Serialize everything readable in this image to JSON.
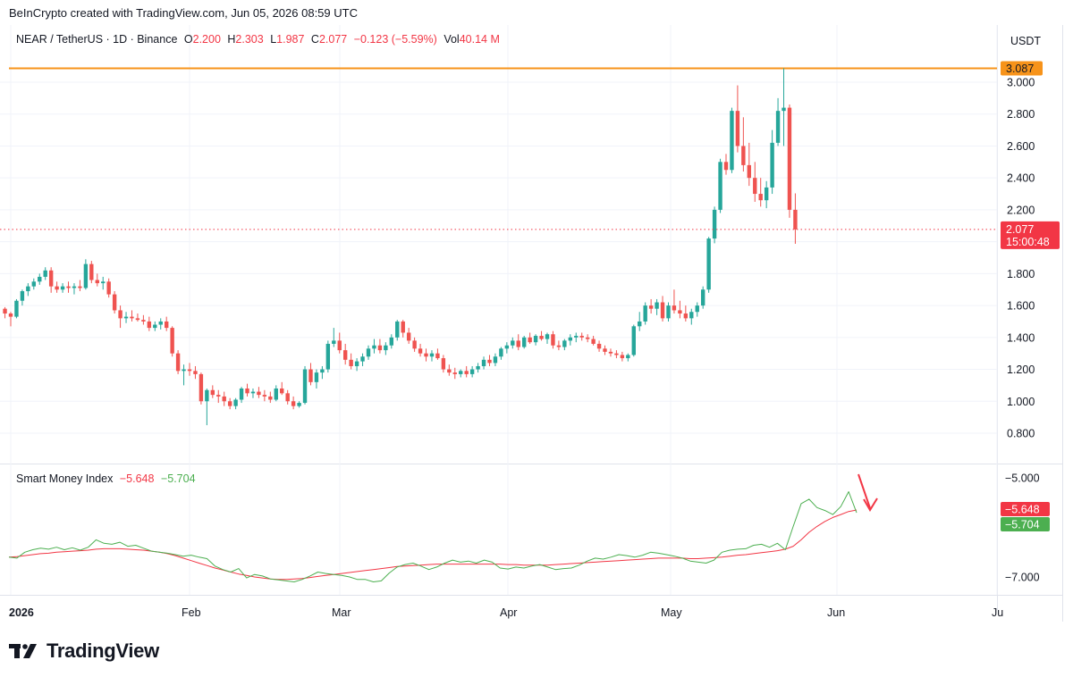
{
  "header": {
    "attribution": "BeInCrypto created with TradingView.com, Jun 05, 2026 08:59 UTC"
  },
  "legend": {
    "symbol": "NEAR / TetherUS · 1D · Binance",
    "o_label": "O",
    "o_value": "2.200",
    "h_label": "H",
    "h_value": "2.303",
    "l_label": "L",
    "l_value": "1.987",
    "c_label": "C",
    "c_value": "2.077",
    "change": "−0.123 (−5.59%)",
    "vol_label": "Vol",
    "vol_value": "40.14 M"
  },
  "indicator": {
    "name": "Smart Money Index",
    "value_red": "−5.648",
    "value_green": "−5.704"
  },
  "price_axis": {
    "currency": "USDT",
    "ticks": [
      "3.000",
      "2.800",
      "2.600",
      "2.400",
      "2.200",
      "1.800",
      "1.600",
      "1.400",
      "1.200",
      "1.000",
      "0.800"
    ],
    "resistance_label": "3.087",
    "last_price_label": "2.077",
    "countdown_label": "15:00:48"
  },
  "indicator_axis": {
    "ticks": [
      "−5.000",
      "−7.000"
    ],
    "red_label": "−5.648",
    "green_label": "−5.704"
  },
  "time_axis": {
    "labels": [
      "2026",
      "Feb",
      "Mar",
      "Apr",
      "May",
      "Jun",
      "Ju"
    ]
  },
  "footer": {
    "brand": "TradingView"
  },
  "colors": {
    "up": "#26a69a",
    "down": "#ef5350",
    "resistance": "#f7931a",
    "smi_line": "#4caf50",
    "smi_signal": "#f23645",
    "arrow": "#f23645"
  },
  "chart_data": {
    "type": "candlestick",
    "symbol": "NEAR / TetherUS",
    "interval": "1D",
    "ylim": [
      0.7,
      3.15
    ],
    "resistance_level": 3.087,
    "last_price": 2.077,
    "start_date": "2025-12-31",
    "candles_ohlc": [
      [
        1.58,
        1.59,
        1.52,
        1.55
      ],
      [
        1.55,
        1.56,
        1.47,
        1.53
      ],
      [
        1.53,
        1.64,
        1.52,
        1.63
      ],
      [
        1.63,
        1.7,
        1.6,
        1.69
      ],
      [
        1.69,
        1.74,
        1.66,
        1.72
      ],
      [
        1.72,
        1.77,
        1.7,
        1.75
      ],
      [
        1.75,
        1.8,
        1.73,
        1.78
      ],
      [
        1.78,
        1.84,
        1.76,
        1.82
      ],
      [
        1.82,
        1.84,
        1.68,
        1.72
      ],
      [
        1.72,
        1.75,
        1.68,
        1.7
      ],
      [
        1.7,
        1.74,
        1.68,
        1.72
      ],
      [
        1.72,
        1.75,
        1.68,
        1.71
      ],
      [
        1.71,
        1.74,
        1.67,
        1.72
      ],
      [
        1.72,
        1.76,
        1.69,
        1.71
      ],
      [
        1.71,
        1.89,
        1.7,
        1.86
      ],
      [
        1.86,
        1.88,
        1.74,
        1.76
      ],
      [
        1.76,
        1.8,
        1.72,
        1.74
      ],
      [
        1.74,
        1.78,
        1.7,
        1.75
      ],
      [
        1.75,
        1.77,
        1.65,
        1.67
      ],
      [
        1.67,
        1.69,
        1.55,
        1.57
      ],
      [
        1.57,
        1.6,
        1.46,
        1.52
      ],
      [
        1.52,
        1.56,
        1.49,
        1.53
      ],
      [
        1.53,
        1.57,
        1.5,
        1.52
      ],
      [
        1.52,
        1.55,
        1.5,
        1.51
      ],
      [
        1.51,
        1.54,
        1.48,
        1.5
      ],
      [
        1.5,
        1.53,
        1.44,
        1.46
      ],
      [
        1.46,
        1.5,
        1.44,
        1.48
      ],
      [
        1.48,
        1.52,
        1.45,
        1.5
      ],
      [
        1.5,
        1.53,
        1.44,
        1.46
      ],
      [
        1.46,
        1.47,
        1.28,
        1.3
      ],
      [
        1.3,
        1.32,
        1.17,
        1.19
      ],
      [
        1.19,
        1.23,
        1.1,
        1.2
      ],
      [
        1.2,
        1.24,
        1.16,
        1.19
      ],
      [
        1.19,
        1.22,
        1.14,
        1.17
      ],
      [
        1.17,
        1.18,
        0.98,
        1.0
      ],
      [
        1.0,
        1.08,
        0.85,
        1.07
      ],
      [
        1.07,
        1.1,
        1.02,
        1.04
      ],
      [
        1.04,
        1.07,
        0.99,
        1.03
      ],
      [
        1.03,
        1.06,
        0.97,
        1.0
      ],
      [
        1.0,
        1.02,
        0.95,
        0.97
      ],
      [
        0.97,
        1.02,
        0.95,
        1.01
      ],
      [
        1.01,
        1.09,
        0.99,
        1.08
      ],
      [
        1.08,
        1.11,
        1.03,
        1.05
      ],
      [
        1.05,
        1.08,
        1.02,
        1.06
      ],
      [
        1.06,
        1.09,
        1.02,
        1.04
      ],
      [
        1.04,
        1.07,
        1.0,
        1.03
      ],
      [
        1.03,
        1.06,
        0.99,
        1.01
      ],
      [
        1.01,
        1.1,
        1.0,
        1.08
      ],
      [
        1.08,
        1.12,
        1.04,
        1.05
      ],
      [
        1.05,
        1.07,
        0.98,
        1.0
      ],
      [
        1.0,
        1.03,
        0.95,
        0.97
      ],
      [
        0.97,
        1.0,
        0.96,
        0.99
      ],
      [
        0.99,
        1.22,
        0.98,
        1.2
      ],
      [
        1.2,
        1.24,
        1.1,
        1.12
      ],
      [
        1.12,
        1.2,
        1.08,
        1.18
      ],
      [
        1.18,
        1.22,
        1.14,
        1.2
      ],
      [
        1.2,
        1.38,
        1.18,
        1.36
      ],
      [
        1.36,
        1.46,
        1.34,
        1.38
      ],
      [
        1.38,
        1.43,
        1.3,
        1.32
      ],
      [
        1.32,
        1.36,
        1.23,
        1.26
      ],
      [
        1.26,
        1.3,
        1.2,
        1.22
      ],
      [
        1.22,
        1.27,
        1.19,
        1.25
      ],
      [
        1.25,
        1.3,
        1.22,
        1.28
      ],
      [
        1.28,
        1.35,
        1.26,
        1.33
      ],
      [
        1.33,
        1.39,
        1.3,
        1.35
      ],
      [
        1.35,
        1.39,
        1.3,
        1.32
      ],
      [
        1.32,
        1.37,
        1.29,
        1.35
      ],
      [
        1.35,
        1.42,
        1.33,
        1.4
      ],
      [
        1.4,
        1.51,
        1.38,
        1.5
      ],
      [
        1.5,
        1.51,
        1.4,
        1.43
      ],
      [
        1.43,
        1.46,
        1.36,
        1.38
      ],
      [
        1.38,
        1.4,
        1.31,
        1.33
      ],
      [
        1.33,
        1.36,
        1.28,
        1.3
      ],
      [
        1.3,
        1.33,
        1.25,
        1.28
      ],
      [
        1.28,
        1.32,
        1.25,
        1.3
      ],
      [
        1.3,
        1.33,
        1.26,
        1.27
      ],
      [
        1.27,
        1.29,
        1.18,
        1.2
      ],
      [
        1.2,
        1.23,
        1.16,
        1.18
      ],
      [
        1.18,
        1.21,
        1.14,
        1.17
      ],
      [
        1.17,
        1.2,
        1.15,
        1.19
      ],
      [
        1.19,
        1.22,
        1.15,
        1.17
      ],
      [
        1.17,
        1.22,
        1.15,
        1.2
      ],
      [
        1.2,
        1.24,
        1.18,
        1.22
      ],
      [
        1.22,
        1.28,
        1.2,
        1.26
      ],
      [
        1.26,
        1.29,
        1.22,
        1.24
      ],
      [
        1.24,
        1.3,
        1.22,
        1.28
      ],
      [
        1.28,
        1.34,
        1.26,
        1.33
      ],
      [
        1.33,
        1.37,
        1.3,
        1.35
      ],
      [
        1.35,
        1.4,
        1.33,
        1.38
      ],
      [
        1.38,
        1.42,
        1.32,
        1.34
      ],
      [
        1.34,
        1.41,
        1.33,
        1.4
      ],
      [
        1.4,
        1.43,
        1.36,
        1.37
      ],
      [
        1.37,
        1.42,
        1.35,
        1.41
      ],
      [
        1.41,
        1.44,
        1.38,
        1.39
      ],
      [
        1.39,
        1.43,
        1.36,
        1.42
      ],
      [
        1.42,
        1.44,
        1.33,
        1.35
      ],
      [
        1.35,
        1.38,
        1.32,
        1.34
      ],
      [
        1.34,
        1.39,
        1.32,
        1.38
      ],
      [
        1.38,
        1.42,
        1.35,
        1.4
      ],
      [
        1.4,
        1.43,
        1.37,
        1.41
      ],
      [
        1.41,
        1.43,
        1.38,
        1.4
      ],
      [
        1.4,
        1.42,
        1.37,
        1.39
      ],
      [
        1.39,
        1.41,
        1.35,
        1.36
      ],
      [
        1.36,
        1.38,
        1.31,
        1.33
      ],
      [
        1.33,
        1.35,
        1.29,
        1.31
      ],
      [
        1.31,
        1.33,
        1.28,
        1.3
      ],
      [
        1.3,
        1.32,
        1.27,
        1.29
      ],
      [
        1.29,
        1.31,
        1.25,
        1.27
      ],
      [
        1.27,
        1.3,
        1.25,
        1.29
      ],
      [
        1.29,
        1.48,
        1.28,
        1.47
      ],
      [
        1.47,
        1.56,
        1.44,
        1.5
      ],
      [
        1.5,
        1.62,
        1.48,
        1.6
      ],
      [
        1.6,
        1.64,
        1.55,
        1.58
      ],
      [
        1.58,
        1.64,
        1.54,
        1.62
      ],
      [
        1.62,
        1.66,
        1.5,
        1.52
      ],
      [
        1.52,
        1.62,
        1.5,
        1.6
      ],
      [
        1.6,
        1.7,
        1.55,
        1.57
      ],
      [
        1.57,
        1.63,
        1.52,
        1.55
      ],
      [
        1.55,
        1.6,
        1.5,
        1.52
      ],
      [
        1.52,
        1.58,
        1.48,
        1.56
      ],
      [
        1.56,
        1.62,
        1.53,
        1.6
      ],
      [
        1.6,
        1.72,
        1.58,
        1.7
      ],
      [
        1.7,
        2.03,
        1.68,
        2.02
      ],
      [
        2.02,
        2.22,
        1.99,
        2.2
      ],
      [
        2.2,
        2.52,
        2.18,
        2.5
      ],
      [
        2.5,
        2.55,
        2.42,
        2.45
      ],
      [
        2.45,
        2.84,
        2.43,
        2.82
      ],
      [
        2.82,
        2.98,
        2.56,
        2.6
      ],
      [
        2.6,
        2.78,
        2.44,
        2.48
      ],
      [
        2.48,
        2.62,
        2.35,
        2.4
      ],
      [
        2.4,
        2.5,
        2.25,
        2.3
      ],
      [
        2.3,
        2.4,
        2.22,
        2.26
      ],
      [
        2.26,
        2.38,
        2.21,
        2.34
      ],
      [
        2.34,
        2.7,
        2.3,
        2.62
      ],
      [
        2.62,
        2.9,
        2.6,
        2.82
      ],
      [
        2.82,
        3.087,
        2.6,
        2.84
      ],
      [
        2.84,
        2.86,
        2.15,
        2.2
      ],
      [
        2.2,
        2.303,
        1.987,
        2.077
      ]
    ],
    "smi_line": [
      -6.6,
      -6.62,
      -6.5,
      -6.45,
      -6.42,
      -6.44,
      -6.4,
      -6.45,
      -6.41,
      -6.46,
      -6.4,
      -6.25,
      -6.32,
      -6.34,
      -6.3,
      -6.38,
      -6.36,
      -6.42,
      -6.48,
      -6.5,
      -6.52,
      -6.55,
      -6.58,
      -6.56,
      -6.6,
      -6.63,
      -6.78,
      -6.85,
      -6.9,
      -6.83,
      -7.02,
      -6.95,
      -6.98,
      -7.04,
      -7.06,
      -7.08,
      -7.1,
      -7.05,
      -6.98,
      -6.9,
      -6.93,
      -6.95,
      -6.97,
      -7.0,
      -7.05,
      -7.05,
      -7.1,
      -7.08,
      -6.92,
      -6.8,
      -6.75,
      -6.72,
      -6.78,
      -6.85,
      -6.8,
      -6.72,
      -6.66,
      -6.7,
      -6.68,
      -6.72,
      -6.66,
      -6.7,
      -6.82,
      -6.84,
      -6.8,
      -6.82,
      -6.78,
      -6.75,
      -6.8,
      -6.85,
      -6.83,
      -6.82,
      -6.76,
      -6.68,
      -6.62,
      -6.64,
      -6.6,
      -6.55,
      -6.57,
      -6.6,
      -6.56,
      -6.5,
      -6.52,
      -6.55,
      -6.58,
      -6.62,
      -6.68,
      -6.7,
      -6.72,
      -6.66,
      -6.5,
      -6.46,
      -6.44,
      -6.43,
      -6.36,
      -6.34,
      -6.4,
      -6.32,
      -6.45,
      -5.98,
      -5.52,
      -5.43,
      -5.6,
      -5.66,
      -5.74,
      -5.58,
      -5.28,
      -5.704
    ],
    "smi_signal": [
      -6.6,
      -6.59,
      -6.57,
      -6.55,
      -6.53,
      -6.52,
      -6.5,
      -6.49,
      -6.48,
      -6.47,
      -6.46,
      -6.44,
      -6.43,
      -6.43,
      -6.43,
      -6.44,
      -6.45,
      -6.46,
      -6.48,
      -6.5,
      -6.53,
      -6.57,
      -6.62,
      -6.67,
      -6.72,
      -6.77,
      -6.82,
      -6.86,
      -6.9,
      -6.94,
      -6.97,
      -7.0,
      -7.02,
      -7.04,
      -7.05,
      -7.05,
      -7.04,
      -7.03,
      -7.01,
      -6.99,
      -6.97,
      -6.95,
      -6.93,
      -6.91,
      -6.89,
      -6.87,
      -6.85,
      -6.83,
      -6.81,
      -6.79,
      -6.78,
      -6.77,
      -6.76,
      -6.75,
      -6.74,
      -6.74,
      -6.74,
      -6.74,
      -6.74,
      -6.74,
      -6.74,
      -6.74,
      -6.74,
      -6.75,
      -6.75,
      -6.76,
      -6.76,
      -6.76,
      -6.76,
      -6.75,
      -6.74,
      -6.73,
      -6.72,
      -6.71,
      -6.7,
      -6.69,
      -6.68,
      -6.67,
      -6.66,
      -6.65,
      -6.64,
      -6.63,
      -6.62,
      -6.62,
      -6.62,
      -6.62,
      -6.63,
      -6.63,
      -6.62,
      -6.61,
      -6.6,
      -6.58,
      -6.56,
      -6.55,
      -6.53,
      -6.51,
      -6.49,
      -6.47,
      -6.44,
      -6.38,
      -6.25,
      -6.1,
      -5.98,
      -5.88,
      -5.8,
      -5.74,
      -5.68,
      -5.648
    ],
    "smi_ylim": [
      -7.3,
      -4.85
    ]
  }
}
